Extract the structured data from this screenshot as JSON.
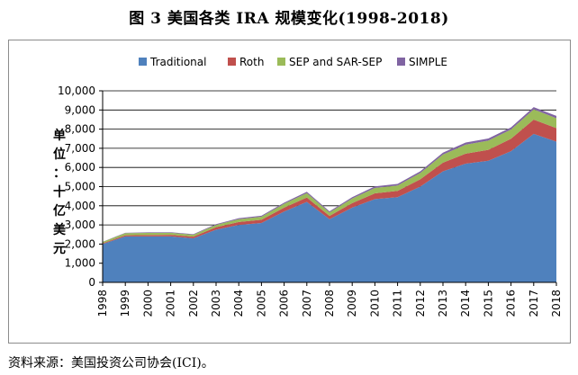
{
  "figure": {
    "title": "图 3  美国各类 IRA 规模变化(1998-2018)",
    "source": "资料来源：美国投资公司协会(ICI)。"
  },
  "chart_data": {
    "type": "area",
    "stacked": true,
    "title": "图 3  美国各类 IRA 规模变化(1998-2018)",
    "ylabel": "单位：十亿美元",
    "xlabel": "",
    "x": [
      "1998",
      "1999",
      "2000",
      "2001",
      "2002",
      "2003",
      "2004",
      "2005",
      "2006",
      "2007",
      "2008",
      "2009",
      "2010",
      "2011",
      "2012",
      "2013",
      "2014",
      "2015",
      "2016",
      "2017",
      "2018"
    ],
    "ylim": [
      0,
      10000
    ],
    "yticks": [
      0,
      1000,
      2000,
      3000,
      4000,
      5000,
      6000,
      7000,
      8000,
      9000,
      10000
    ],
    "ytick_labels": [
      "0",
      "1,000",
      "2,000",
      "3,000",
      "4,000",
      "5,000",
      "6,000",
      "7,000",
      "8,000",
      "9,000",
      "10,000"
    ],
    "grid": true,
    "legend_position": "top",
    "series": [
      {
        "name": "Traditional",
        "color": "#4f81bd",
        "values": [
          2000,
          2400,
          2400,
          2400,
          2300,
          2750,
          3000,
          3100,
          3700,
          4200,
          3300,
          3900,
          4350,
          4450,
          5000,
          5800,
          6200,
          6350,
          6850,
          7750,
          7350
        ]
      },
      {
        "name": "Roth",
        "color": "#c0504d",
        "values": [
          40,
          60,
          70,
          80,
          90,
          130,
          150,
          170,
          200,
          230,
          170,
          240,
          300,
          330,
          380,
          450,
          520,
          570,
          650,
          750,
          700
        ]
      },
      {
        "name": "SEP and SAR-SEP",
        "color": "#9bbb59",
        "values": [
          70,
          110,
          110,
          110,
          100,
          120,
          150,
          160,
          200,
          230,
          180,
          240,
          280,
          280,
          330,
          420,
          470,
          480,
          480,
          530,
          520
        ]
      },
      {
        "name": "SIMPLE",
        "color": "#8064a2",
        "values": [
          10,
          20,
          30,
          30,
          30,
          40,
          50,
          50,
          60,
          70,
          60,
          70,
          80,
          80,
          90,
          100,
          110,
          110,
          110,
          120,
          120
        ]
      }
    ]
  }
}
